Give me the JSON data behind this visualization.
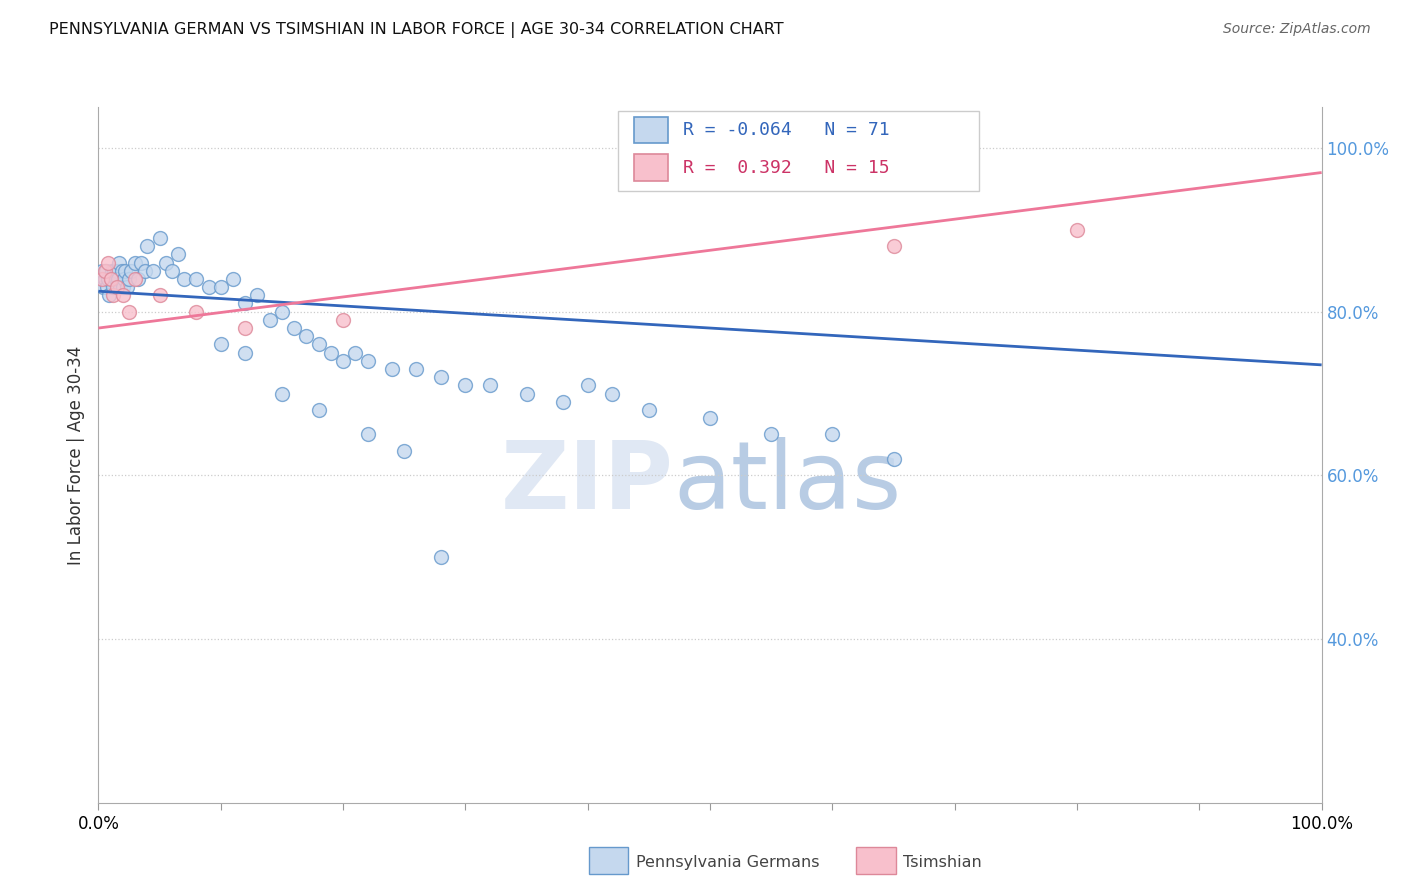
{
  "title": "PENNSYLVANIA GERMAN VS TSIMSHIAN IN LABOR FORCE | AGE 30-34 CORRELATION CHART",
  "source": "Source: ZipAtlas.com",
  "ylabel": "In Labor Force | Age 30-34",
  "r1": "-0.064",
  "n1": "71",
  "r2": "0.392",
  "n2": "15",
  "blue_face": "#c5d8ee",
  "blue_edge": "#6699cc",
  "pink_face": "#f8c0cc",
  "pink_edge": "#dd8899",
  "blue_line": "#3366bb",
  "pink_line": "#ee7799",
  "grid_color": "#cccccc",
  "right_tick_color": "#5599dd",
  "legend_label1": "Pennsylvania Germans",
  "legend_label2": "Tsimshian",
  "blue_x": [
    0.2,
    0.3,
    0.4,
    0.5,
    0.6,
    0.7,
    0.8,
    0.9,
    1.0,
    1.1,
    1.2,
    1.3,
    1.4,
    1.5,
    1.6,
    1.7,
    1.8,
    1.9,
    2.0,
    2.1,
    2.2,
    2.3,
    2.5,
    2.7,
    3.0,
    3.2,
    3.5,
    3.8,
    4.0,
    4.5,
    5.0,
    5.5,
    6.0,
    6.5,
    7.0,
    8.0,
    9.0,
    10.0,
    11.0,
    12.0,
    13.0,
    14.0,
    15.0,
    16.0,
    17.0,
    18.0,
    19.0,
    20.0,
    21.0,
    22.0,
    24.0,
    26.0,
    28.0,
    30.0,
    32.0,
    35.0,
    38.0,
    40.0,
    42.0,
    45.0,
    50.0,
    55.0,
    60.0,
    65.0,
    10.0,
    12.0,
    15.0,
    18.0,
    22.0,
    25.0,
    28.0
  ],
  "blue_y": [
    84,
    85,
    83,
    84,
    85,
    83,
    84,
    82,
    84,
    85,
    83,
    85,
    84,
    85,
    84,
    86,
    83,
    85,
    83,
    84,
    85,
    83,
    84,
    85,
    86,
    84,
    86,
    85,
    88,
    85,
    89,
    86,
    85,
    87,
    84,
    84,
    83,
    83,
    84,
    81,
    82,
    79,
    80,
    78,
    77,
    76,
    75,
    74,
    75,
    74,
    73,
    73,
    72,
    71,
    71,
    70,
    69,
    71,
    70,
    68,
    67,
    65,
    65,
    62,
    76,
    75,
    70,
    68,
    65,
    63,
    50
  ],
  "pink_x": [
    0.3,
    0.5,
    0.8,
    1.0,
    1.2,
    1.5,
    2.0,
    2.5,
    3.0,
    5.0,
    8.0,
    12.0,
    20.0,
    65.0,
    80.0
  ],
  "pink_y": [
    84,
    85,
    86,
    84,
    82,
    83,
    82,
    80,
    84,
    82,
    80,
    78,
    79,
    88,
    90
  ],
  "blue_trend": [
    82.5,
    73.5
  ],
  "pink_trend": [
    78.0,
    97.0
  ],
  "xlim_data": [
    0,
    100
  ],
  "ylim_data": [
    20,
    105
  ],
  "yticks_right": [
    40,
    60,
    80,
    100
  ],
  "xticks_major": [
    0,
    10,
    20,
    30,
    40,
    50,
    60,
    70,
    80,
    90,
    100
  ],
  "xticks_show": [
    0,
    100
  ],
  "marker_size": 100
}
